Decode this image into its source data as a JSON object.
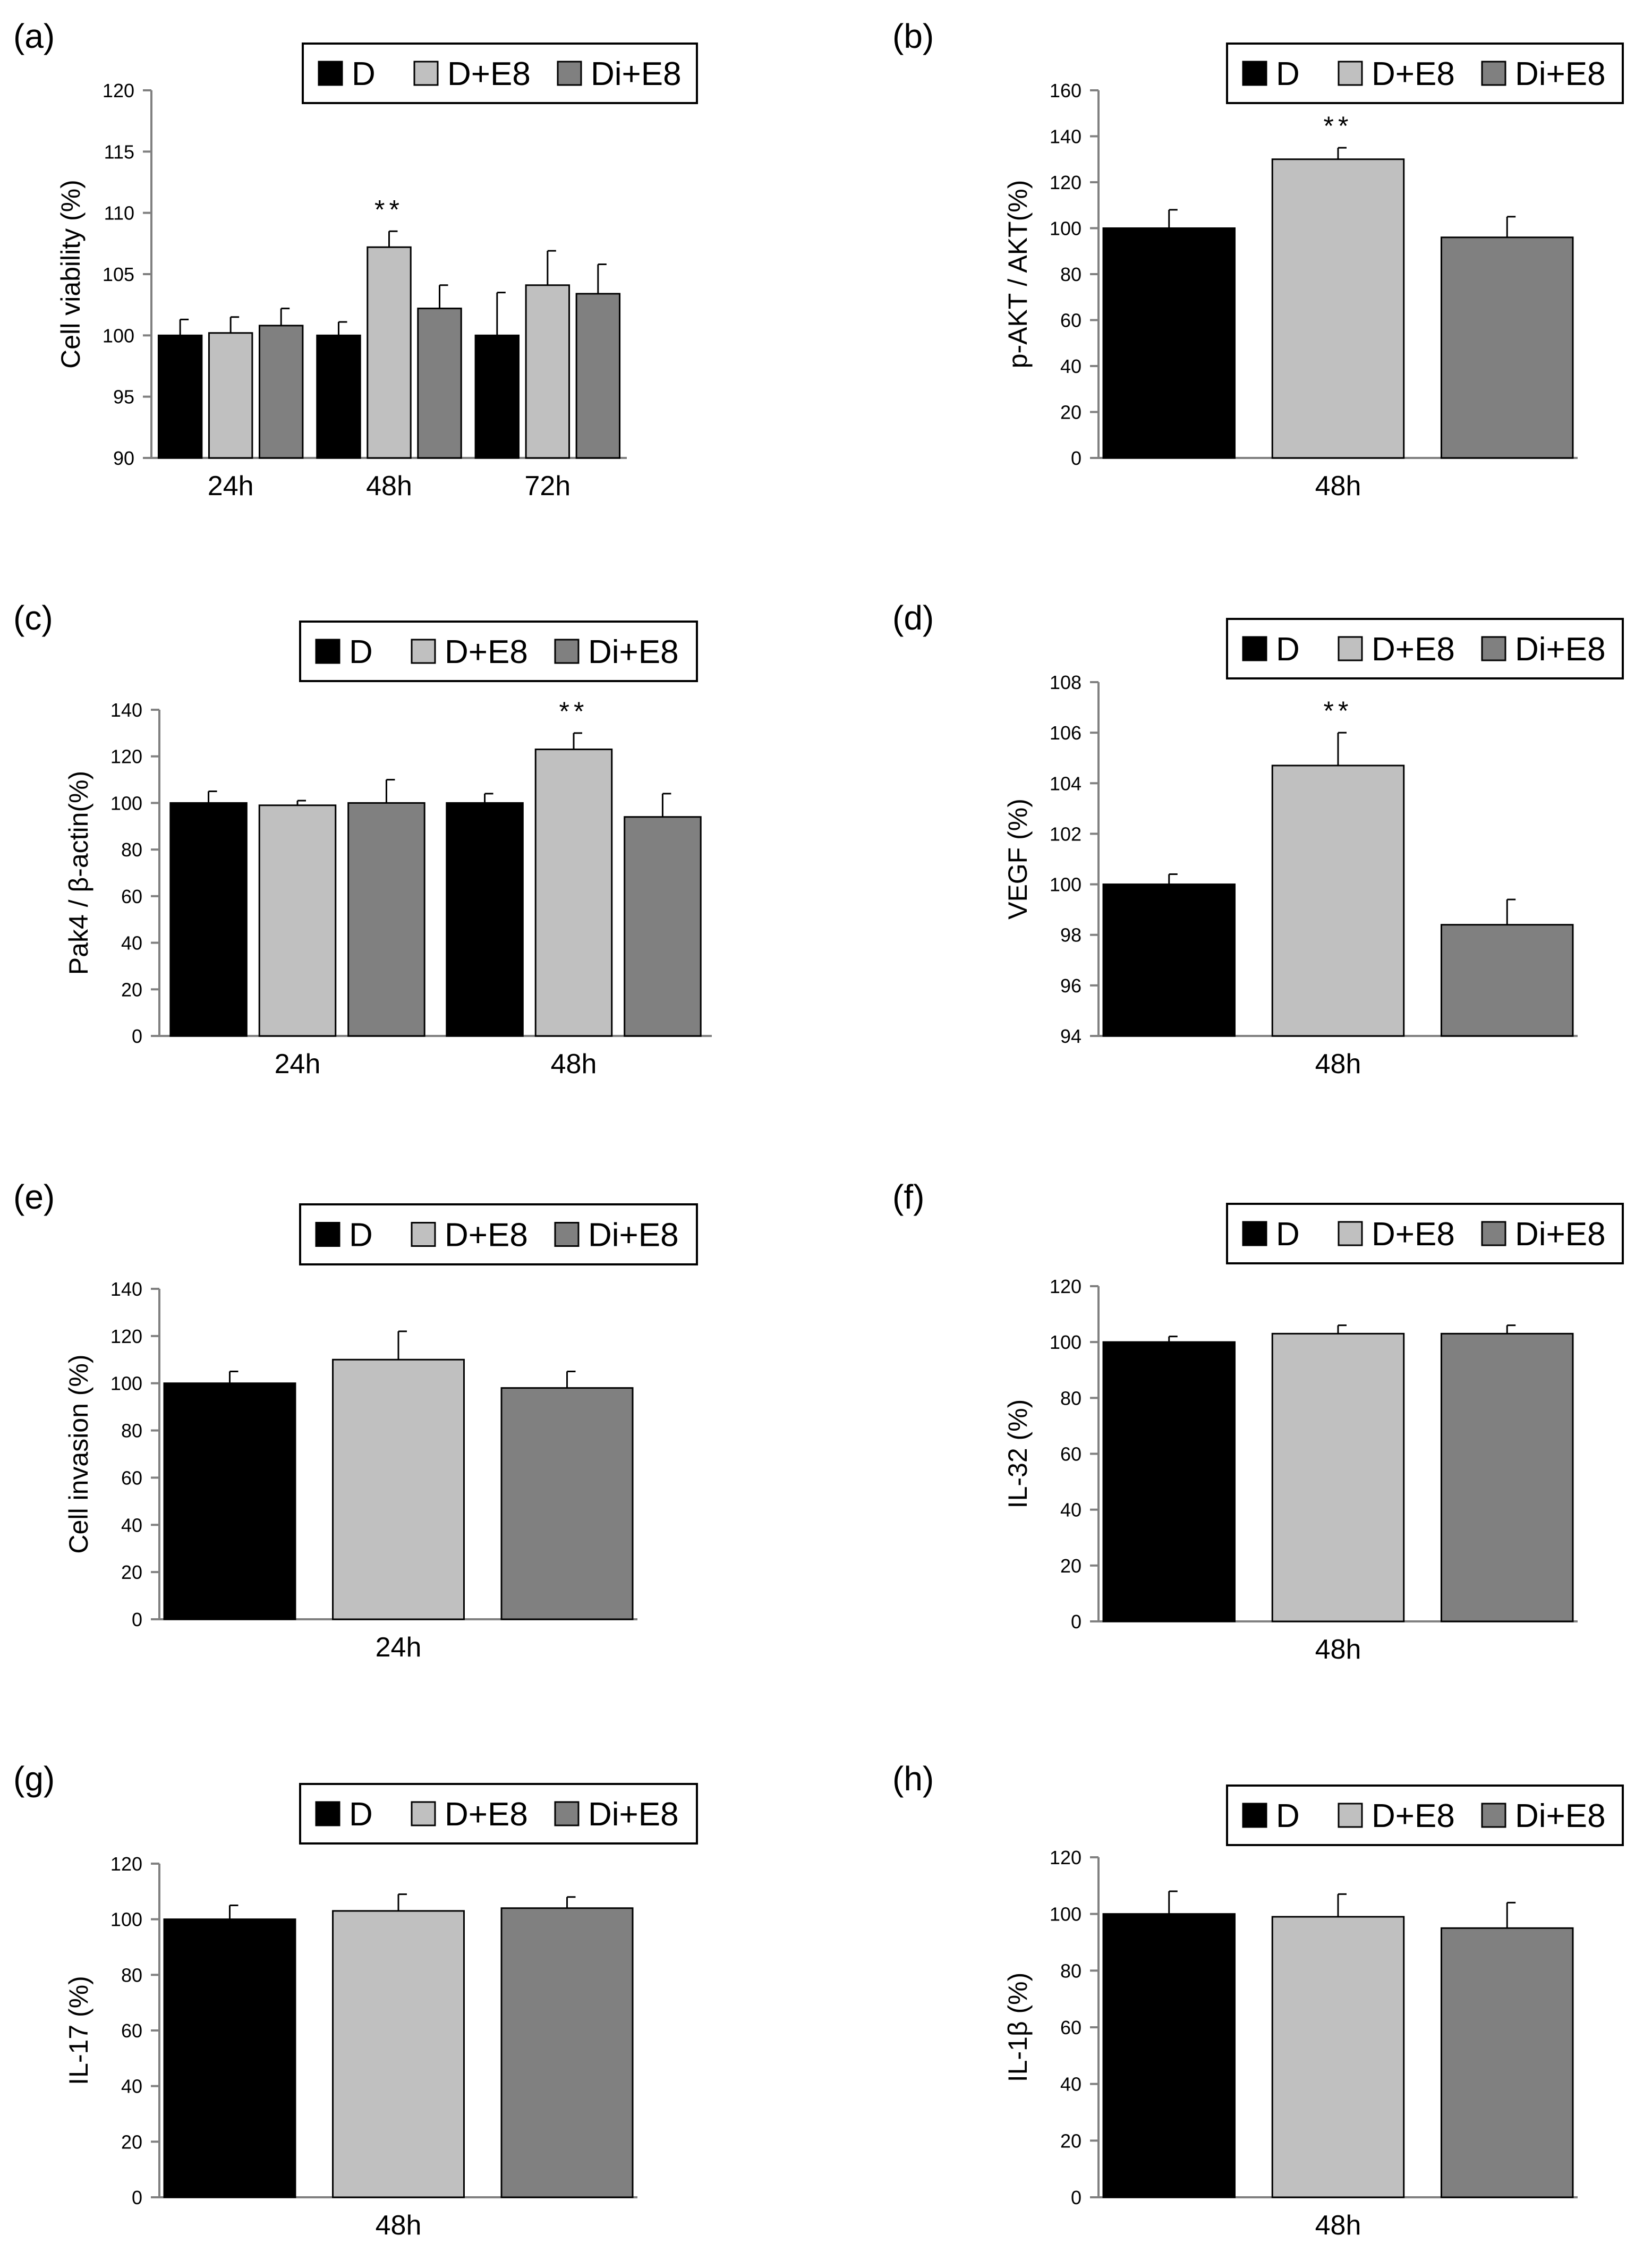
{
  "legend_labels": [
    "D",
    "D+E8",
    "Di+E8"
  ],
  "colors": {
    "D": "#000000",
    "D+E8": "#c0c0c0",
    "Di+E8": "#808080",
    "axis": "#808080",
    "text": "#000000"
  },
  "chart_data": [
    {
      "panel": "(a)",
      "type": "bar",
      "ylabel": "Cell viability (%)",
      "xlabel": "",
      "ylim": [
        90,
        120
      ],
      "yticks": [
        90,
        95,
        100,
        105,
        110,
        115,
        120
      ],
      "categories": [
        "24h",
        "48h",
        "72h"
      ],
      "series": [
        {
          "name": "D",
          "values": [
            100,
            100,
            100
          ],
          "errors": [
            1.3,
            1.1,
            3.5
          ]
        },
        {
          "name": "D+E8",
          "values": [
            100.2,
            107.2,
            104.1
          ],
          "errors": [
            1.3,
            1.3,
            2.8
          ]
        },
        {
          "name": "Di+E8",
          "values": [
            100.8,
            102.2,
            103.4
          ],
          "errors": [
            1.4,
            1.9,
            2.4
          ]
        }
      ],
      "annotations": [
        {
          "category": 1,
          "series": 1,
          "text": "**"
        }
      ]
    },
    {
      "panel": "(b)",
      "type": "bar",
      "ylabel": "p-AKT / AKT(%)",
      "xlabel": "",
      "ylim": [
        0,
        160
      ],
      "yticks": [
        0,
        20,
        40,
        60,
        80,
        100,
        120,
        140,
        160
      ],
      "categories": [
        "48h"
      ],
      "series": [
        {
          "name": "D",
          "values": [
            100
          ],
          "errors": [
            8
          ]
        },
        {
          "name": "D+E8",
          "values": [
            130
          ],
          "errors": [
            5
          ]
        },
        {
          "name": "Di+E8",
          "values": [
            96
          ],
          "errors": [
            9
          ]
        }
      ],
      "annotations": [
        {
          "category": 0,
          "series": 1,
          "text": "**"
        }
      ]
    },
    {
      "panel": "(c)",
      "type": "bar",
      "ylabel": "Pak4 / β-actin(%)",
      "xlabel": "",
      "ylim": [
        0,
        140
      ],
      "yticks": [
        0,
        20,
        40,
        60,
        80,
        100,
        120,
        140
      ],
      "categories": [
        "24h",
        "48h"
      ],
      "series": [
        {
          "name": "D",
          "values": [
            100,
            100
          ],
          "errors": [
            5,
            4
          ]
        },
        {
          "name": "D+E8",
          "values": [
            99,
            123
          ],
          "errors": [
            2,
            7
          ]
        },
        {
          "name": "Di+E8",
          "values": [
            100,
            94
          ],
          "errors": [
            10,
            10
          ]
        }
      ],
      "annotations": [
        {
          "category": 1,
          "series": 1,
          "text": "**"
        }
      ]
    },
    {
      "panel": "(d)",
      "type": "bar",
      "ylabel": "VEGF (%)",
      "xlabel": "",
      "ylim": [
        94,
        108
      ],
      "yticks": [
        94,
        96,
        98,
        100,
        102,
        104,
        106,
        108
      ],
      "categories": [
        "48h"
      ],
      "series": [
        {
          "name": "D",
          "values": [
            100
          ],
          "errors": [
            0.4
          ]
        },
        {
          "name": "D+E8",
          "values": [
            104.7
          ],
          "errors": [
            1.3
          ]
        },
        {
          "name": "Di+E8",
          "values": [
            98.4
          ],
          "errors": [
            1.0
          ]
        }
      ],
      "annotations": [
        {
          "category": 0,
          "series": 1,
          "text": "**"
        }
      ]
    },
    {
      "panel": "(e)",
      "type": "bar",
      "ylabel": "Cell invasion (%)",
      "xlabel": "",
      "ylim": [
        0,
        140
      ],
      "yticks": [
        0,
        20,
        40,
        60,
        80,
        100,
        120,
        140
      ],
      "categories": [
        "24h"
      ],
      "series": [
        {
          "name": "D",
          "values": [
            100
          ],
          "errors": [
            5
          ]
        },
        {
          "name": "D+E8",
          "values": [
            110
          ],
          "errors": [
            12
          ]
        },
        {
          "name": "Di+E8",
          "values": [
            98
          ],
          "errors": [
            7
          ]
        }
      ],
      "annotations": []
    },
    {
      "panel": "(f)",
      "type": "bar",
      "ylabel": "IL-32 (%)",
      "xlabel": "",
      "ylim": [
        0,
        120
      ],
      "yticks": [
        0,
        20,
        40,
        60,
        80,
        100,
        120
      ],
      "categories": [
        "48h"
      ],
      "series": [
        {
          "name": "D",
          "values": [
            100
          ],
          "errors": [
            2
          ]
        },
        {
          "name": "D+E8",
          "values": [
            103
          ],
          "errors": [
            3
          ]
        },
        {
          "name": "Di+E8",
          "values": [
            103
          ],
          "errors": [
            3
          ]
        }
      ],
      "annotations": []
    },
    {
      "panel": "(g)",
      "type": "bar",
      "ylabel": "IL-17 (%)",
      "xlabel": "",
      "ylim": [
        0,
        120
      ],
      "yticks": [
        0,
        20,
        40,
        60,
        80,
        100,
        120
      ],
      "categories": [
        "48h"
      ],
      "series": [
        {
          "name": "D",
          "values": [
            100
          ],
          "errors": [
            5
          ]
        },
        {
          "name": "D+E8",
          "values": [
            103
          ],
          "errors": [
            6
          ]
        },
        {
          "name": "Di+E8",
          "values": [
            104
          ],
          "errors": [
            4
          ]
        }
      ],
      "annotations": []
    },
    {
      "panel": "(h)",
      "type": "bar",
      "ylabel": "IL-1β (%)",
      "xlabel": "",
      "ylim": [
        0,
        120
      ],
      "yticks": [
        0,
        20,
        40,
        60,
        80,
        100,
        120
      ],
      "categories": [
        "48h"
      ],
      "series": [
        {
          "name": "D",
          "values": [
            100
          ],
          "errors": [
            8
          ]
        },
        {
          "name": "D+E8",
          "values": [
            99
          ],
          "errors": [
            8
          ]
        },
        {
          "name": "Di+E8",
          "values": [
            95
          ],
          "errors": [
            9
          ]
        }
      ],
      "annotations": []
    }
  ]
}
